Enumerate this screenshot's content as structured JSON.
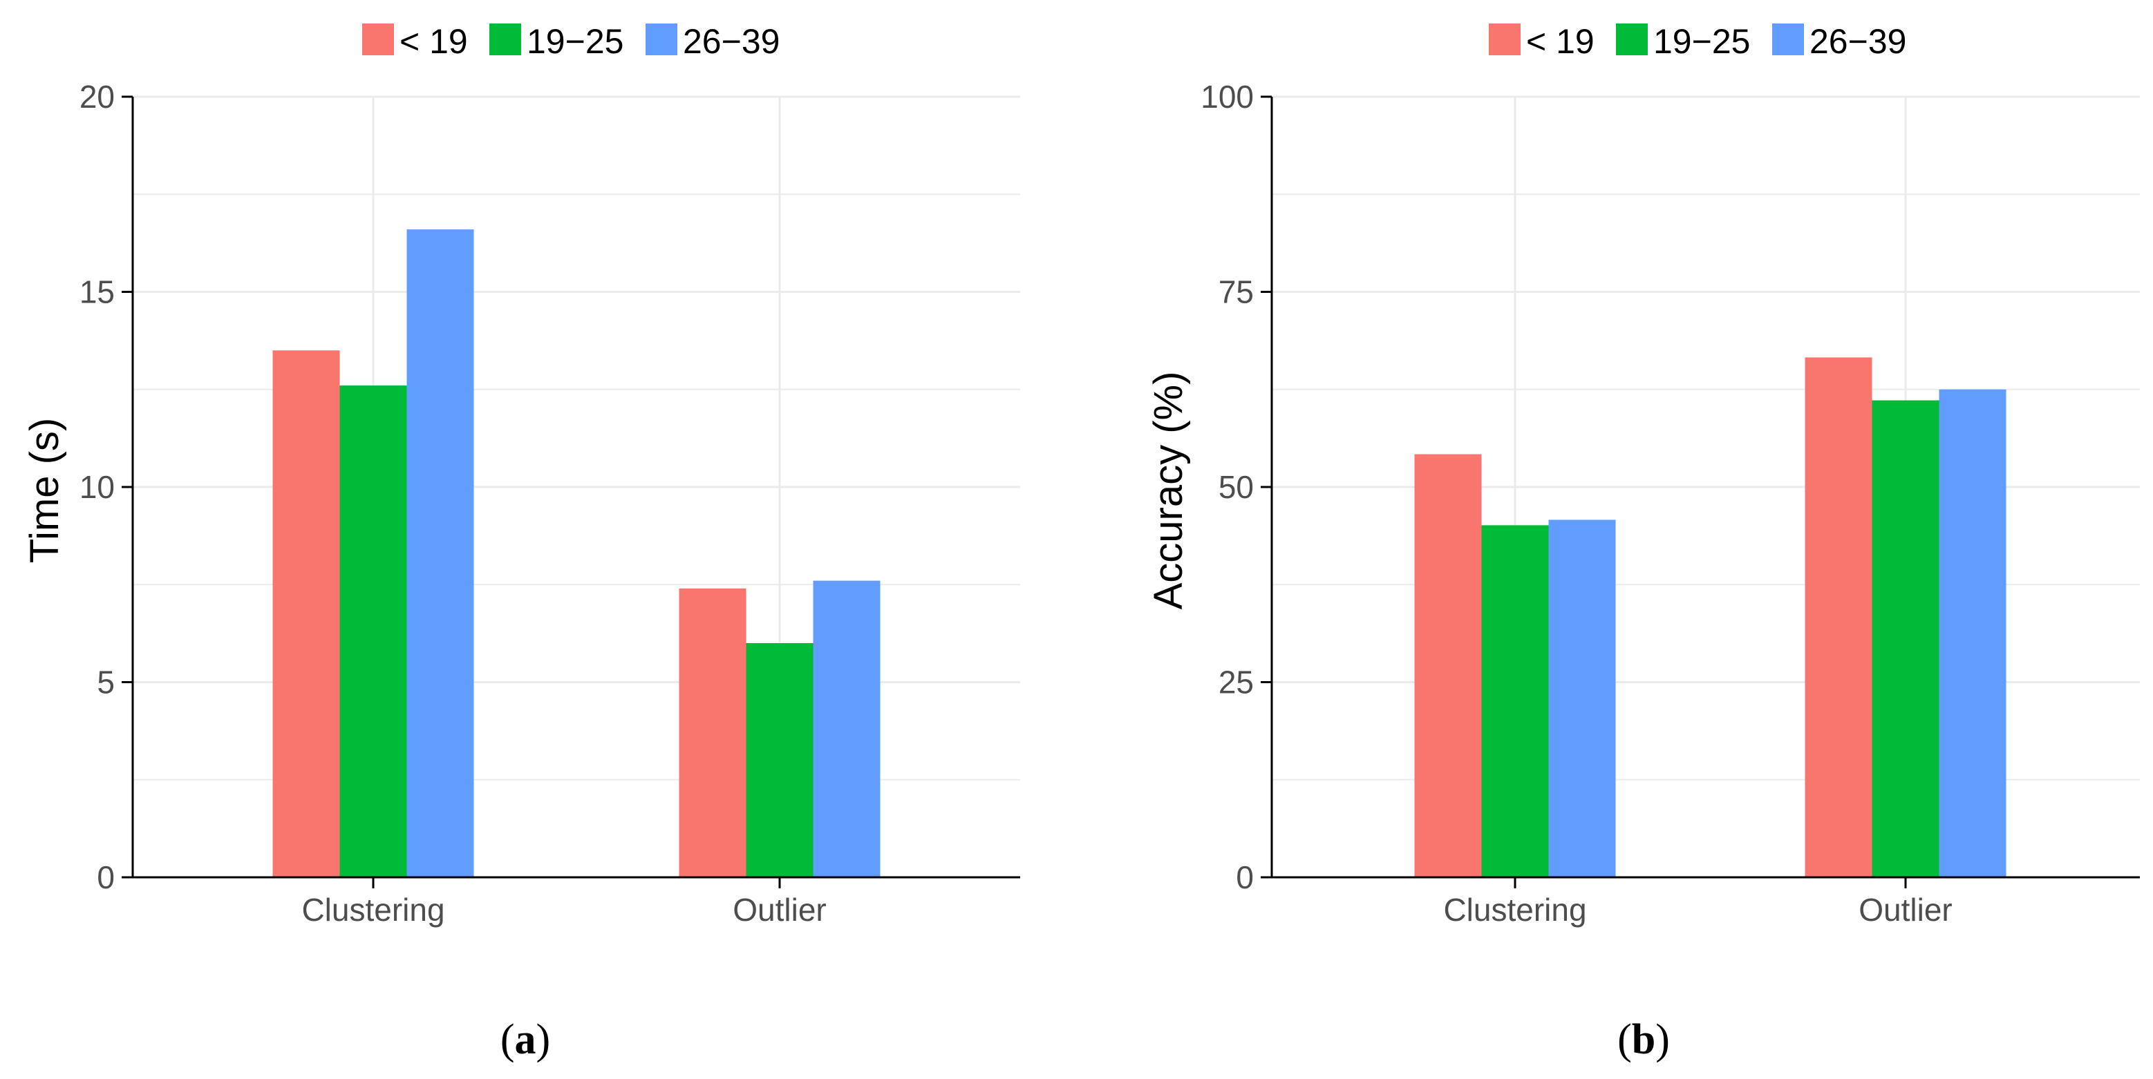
{
  "chart_data": [
    {
      "type": "bar",
      "panel_label": "a",
      "title": "",
      "categories": [
        "Clustering",
        "Outlier"
      ],
      "series": [
        {
          "name": "< 19",
          "values": [
            13.5,
            7.4
          ]
        },
        {
          "name": "19−25",
          "values": [
            12.6,
            6.0
          ]
        },
        {
          "name": "26−39",
          "values": [
            16.6,
            7.6
          ]
        }
      ],
      "xlabel": "",
      "ylabel": "Time (s)",
      "ylim": [
        0,
        20
      ],
      "yticks": [
        0,
        5,
        10,
        15,
        20
      ],
      "ytick_labels": [
        "0",
        "5",
        "10",
        "15",
        "20"
      ],
      "grid": true,
      "legend_position": "top"
    },
    {
      "type": "bar",
      "panel_label": "b",
      "title": "",
      "categories": [
        "Clustering",
        "Outlier"
      ],
      "series": [
        {
          "name": "< 19",
          "values": [
            54.2,
            66.6
          ]
        },
        {
          "name": "19−25",
          "values": [
            45.1,
            61.1
          ]
        },
        {
          "name": "26−39",
          "values": [
            45.8,
            62.5
          ]
        }
      ],
      "xlabel": "",
      "ylabel": "Accuracy (%)",
      "ylim": [
        0,
        100
      ],
      "yticks": [
        0,
        25,
        50,
        75,
        100
      ],
      "ytick_labels": [
        "0",
        "25",
        "50",
        "75",
        "100"
      ],
      "grid": true,
      "legend_position": "top"
    }
  ],
  "colors": {
    "series": [
      "#F8766D",
      "#00BA38",
      "#619CFF"
    ],
    "grid": "#ebebeb",
    "axis": "#000000"
  }
}
